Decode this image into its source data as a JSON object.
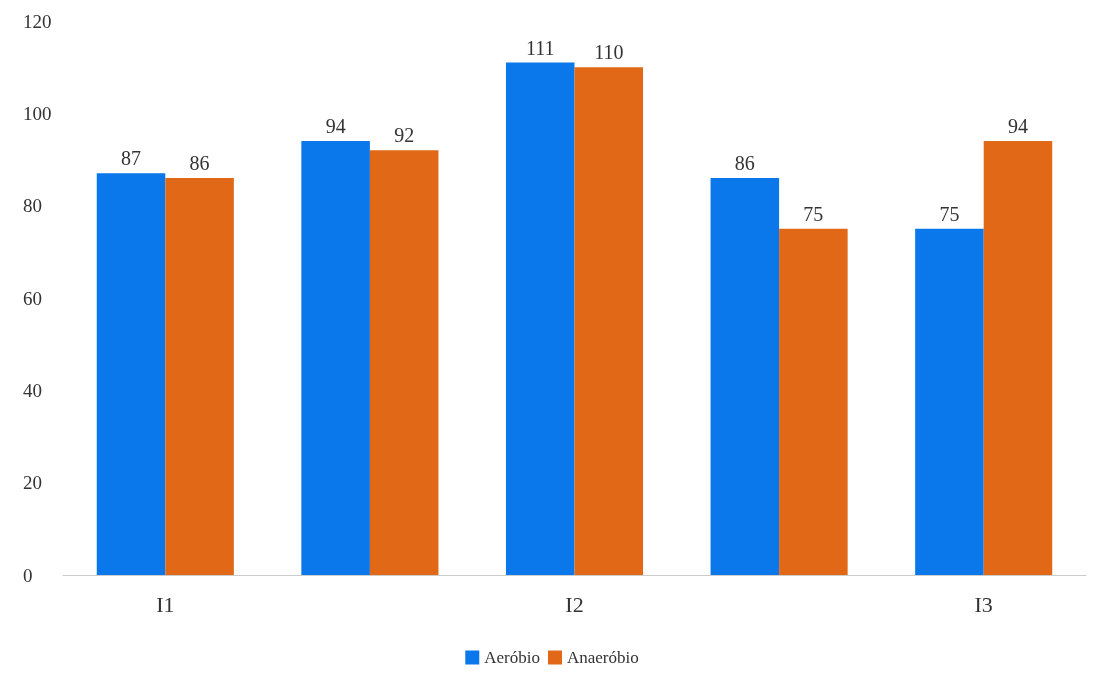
{
  "chart_data": {
    "type": "bar",
    "categories": [
      "I1",
      null,
      "I2",
      null,
      "I3"
    ],
    "series": [
      {
        "name": "Aeróbio",
        "color": "#0a77ea",
        "values": [
          87,
          94,
          111,
          86,
          75
        ]
      },
      {
        "name": "Anaeróbio",
        "color": "#e06816",
        "values": [
          86,
          92,
          110,
          75,
          94
        ]
      }
    ],
    "ylim": [
      0,
      120
    ],
    "yticks": [
      0,
      20,
      40,
      60,
      80,
      100,
      120
    ],
    "grid": false,
    "legend": "bottom",
    "data_labels": true
  }
}
